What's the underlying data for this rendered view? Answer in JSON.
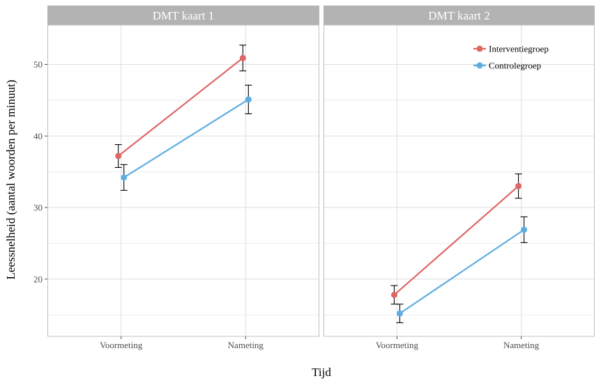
{
  "colors": {
    "interventie": "#e06666",
    "controle": "#5dade2",
    "strip": "#b3b3b3",
    "grid": "#dedede",
    "errorbar": "#000000"
  },
  "chart_data": {
    "type": "line",
    "xlabel": "Tijd",
    "ylabel": "Leessnelheid (aantal woorden per minuut)",
    "categories": [
      "Voormeting",
      "Nameting"
    ],
    "ylim": [
      12,
      55.5
    ],
    "yticks": [
      20,
      30,
      40,
      50
    ],
    "grid": true,
    "legend_position": "top-right of second panel",
    "panels": [
      {
        "title": "DMT kaart 1",
        "series": [
          {
            "name": "Interventiegroep",
            "values": [
              37.2,
              50.9
            ],
            "errors": [
              1.6,
              1.8
            ]
          },
          {
            "name": "Controlegroep",
            "values": [
              34.2,
              45.1
            ],
            "errors": [
              1.8,
              2.0
            ]
          }
        ]
      },
      {
        "title": "DMT kaart 2",
        "series": [
          {
            "name": "Interventiegroep",
            "values": [
              17.8,
              33.0
            ],
            "errors": [
              1.3,
              1.7
            ]
          },
          {
            "name": "Controlegroep",
            "values": [
              15.2,
              26.9
            ],
            "errors": [
              1.3,
              1.8
            ]
          }
        ]
      }
    ]
  }
}
